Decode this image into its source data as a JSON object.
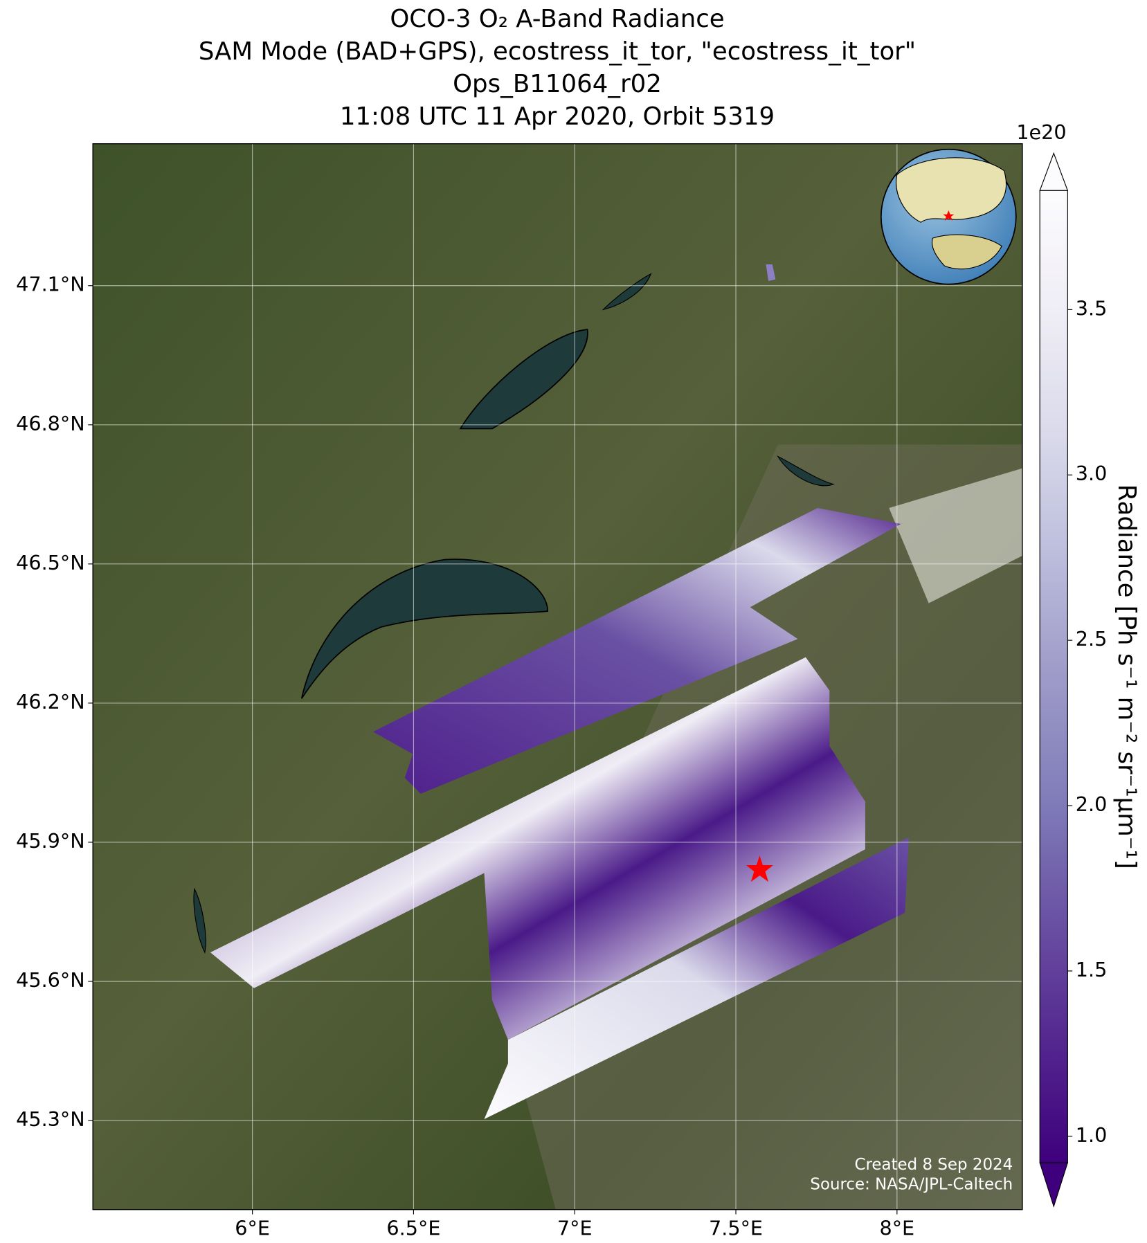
{
  "chart_data": {
    "type": "map",
    "title": [
      "OCO-3 O₂ A-Band Radiance",
      "SAM Mode (BAD+GPS), ecostress_it_tor, \"ecostress_it_tor\"",
      "Ops_B11064_r02",
      "11:08 UTC 11 Apr 2020, Orbit 5319"
    ],
    "xlim": [
      5.505,
      8.389
    ],
    "ylim": [
      45.108,
      47.406
    ],
    "xticks": [
      {
        "value": 6,
        "label": "6°E"
      },
      {
        "value": 6.5,
        "label": "6.5°E"
      },
      {
        "value": 7,
        "label": "7°E"
      },
      {
        "value": 7.5,
        "label": "7.5°E"
      },
      {
        "value": 8,
        "label": "8°E"
      }
    ],
    "yticks": [
      {
        "value": 45.3,
        "label": "45.3°N"
      },
      {
        "value": 45.6,
        "label": "45.6°N"
      },
      {
        "value": 45.9,
        "label": "45.9°N"
      },
      {
        "value": 46.2,
        "label": "46.2°N"
      },
      {
        "value": 46.5,
        "label": "46.5°N"
      },
      {
        "value": 46.8,
        "label": "46.8°N"
      },
      {
        "value": 47.1,
        "label": "47.1°N"
      }
    ],
    "grid": true,
    "colorbar": {
      "label": "Radiance [Ph s⁻¹ m⁻² sr⁻¹μm⁻¹]",
      "offset_label": "1e20",
      "clim": [
        0.92,
        3.86
      ],
      "ticks": [
        {
          "value": 1,
          "label": "1.0"
        },
        1.5,
        {
          "value": 2,
          "label": "2.0"
        },
        2.5,
        {
          "value": 3,
          "label": "3.0"
        },
        3.5
      ],
      "colormap": [
        "#3f007d",
        "#54278f",
        "#6a51a3",
        "#807dba",
        "#9e9ac8",
        "#bcbddc",
        "#dadaeb",
        "#efedf5",
        "#fcfbfd"
      ]
    },
    "credits": [
      "Created 8 Sep 2024",
      "Source: NASA/JPL-Caltech"
    ]
  }
}
